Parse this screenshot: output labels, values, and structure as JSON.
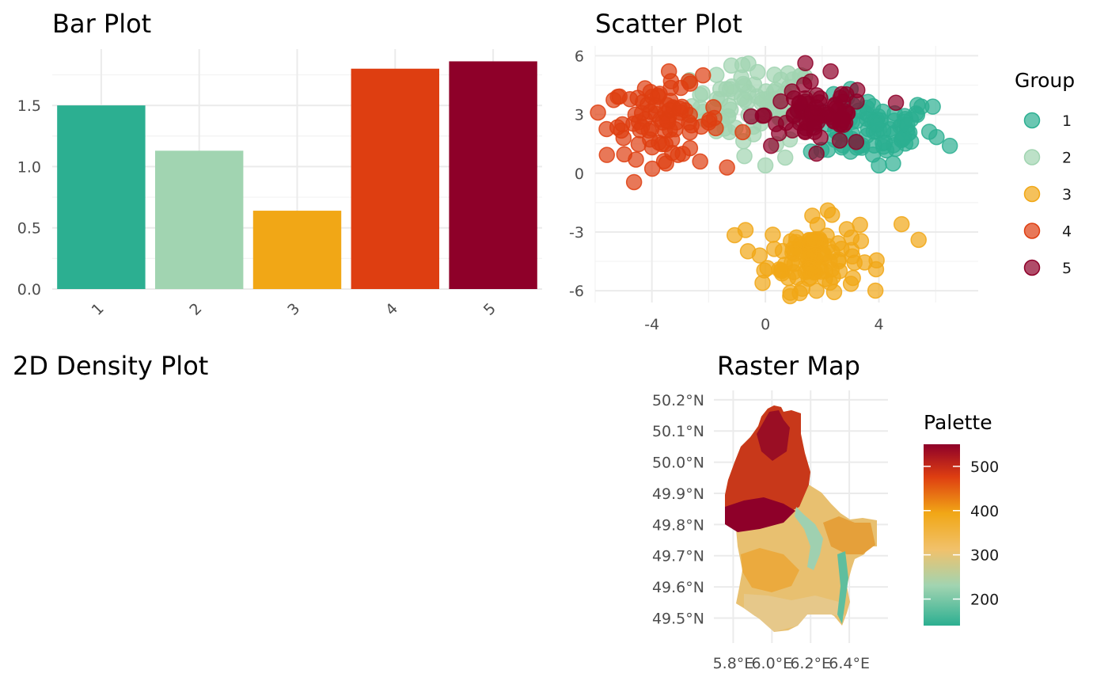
{
  "colors": {
    "g1": "#2CAF91",
    "g2": "#A1D4B1",
    "g3": "#F1A716",
    "g4": "#DE3E11",
    "g5": "#8E0029"
  },
  "chart_data": [
    {
      "type": "bar",
      "title": "Bar Plot",
      "categories": [
        "1",
        "2",
        "3",
        "4",
        "5"
      ],
      "values": [
        1.5,
        1.13,
        0.64,
        1.8,
        1.86
      ],
      "ylim": [
        0,
        1.96
      ],
      "yticks": [
        "0.0",
        "0.5",
        "1.0",
        "1.5"
      ],
      "xticks_rotated": true,
      "grid": true
    },
    {
      "type": "scatter",
      "title": "Scatter Plot",
      "xlim": [
        -6,
        7.5
      ],
      "ylim": [
        -6.6,
        6.5
      ],
      "xticks": [
        "-4",
        "0",
        "4"
      ],
      "yticks": [
        "6",
        "3",
        "0",
        "-3",
        "-6"
      ],
      "legend": {
        "title": "Group",
        "position": "right",
        "entries": [
          "1",
          "2",
          "3",
          "4",
          "5"
        ]
      },
      "grid": true,
      "series": [
        {
          "name": "1",
          "center": [
            3.7,
            2.3
          ],
          "spread": [
            1.1,
            0.8
          ],
          "count": 80,
          "points": [
            [
              6.5,
              1.4
            ],
            [
              5.5,
              3.4
            ],
            [
              5.9,
              3.4
            ],
            [
              4.5,
              0.5
            ],
            [
              4.0,
              0.4
            ],
            [
              4.8,
              1.7
            ],
            [
              3.0,
              1.1
            ],
            [
              2.2,
              1.2
            ]
          ]
        },
        {
          "name": "2",
          "center": [
            -0.4,
            3.5
          ],
          "spread": [
            1.1,
            1.0
          ],
          "count": 70,
          "points": [
            [
              -1.2,
              5.5
            ],
            [
              -0.6,
              5.6
            ],
            [
              0.8,
              5.1
            ],
            [
              0.0,
              0.4
            ],
            [
              0.7,
              0.8
            ],
            [
              -2.3,
              4.0
            ]
          ]
        },
        {
          "name": "3",
          "center": [
            1.7,
            -4.2
          ],
          "spread": [
            0.8,
            0.9
          ],
          "count": 100,
          "points": [
            [
              -0.7,
              -2.9
            ],
            [
              2.2,
              -1.9
            ],
            [
              4.8,
              -2.6
            ],
            [
              5.4,
              -3.4
            ],
            [
              -0.2,
              -4.2
            ],
            [
              -0.1,
              -5.6
            ],
            [
              1.3,
              -5.9
            ],
            [
              1.8,
              -6.0
            ],
            [
              3.9,
              -4.9
            ]
          ]
        },
        {
          "name": "4",
          "center": [
            -3.6,
            2.6
          ],
          "spread": [
            1.0,
            0.9
          ],
          "count": 80,
          "points": [
            [
              -5.9,
              3.1
            ],
            [
              -5.2,
              3.9
            ],
            [
              -3.4,
              5.2
            ],
            [
              -2.2,
              5.0
            ],
            [
              -3.5,
              0.5
            ],
            [
              -2.3,
              0.6
            ],
            [
              -5.0,
              1.8
            ],
            [
              -0.8,
              2.1
            ]
          ]
        },
        {
          "name": "5",
          "center": [
            1.8,
            3.0
          ],
          "spread": [
            0.9,
            0.8
          ],
          "count": 70,
          "points": [
            [
              2.3,
              5.2
            ],
            [
              4.6,
              3.6
            ],
            [
              0.2,
              1.4
            ],
            [
              1.8,
              1.0
            ],
            [
              3.2,
              1.6
            ],
            [
              -0.5,
              2.9
            ]
          ]
        }
      ]
    },
    {
      "type": "heatmap",
      "title": "2D Density Plot",
      "note": "panel is empty"
    },
    {
      "type": "heatmap",
      "title": "Raster Map",
      "xticks": [
        "5.8°E",
        "6.0°E",
        "6.2°E",
        "6.4°E"
      ],
      "yticks": [
        "50.2°N",
        "50.1°N",
        "50.0°N",
        "49.9°N",
        "49.8°N",
        "49.7°N",
        "49.6°N",
        "49.5°N"
      ],
      "xlim": [
        5.7,
        6.6
      ],
      "ylim": [
        49.42,
        50.23
      ],
      "legend": {
        "title": "Palette",
        "position": "right",
        "ticks": [
          "500",
          "400",
          "300",
          "200"
        ],
        "range": [
          140,
          550
        ]
      },
      "grid": true
    }
  ]
}
